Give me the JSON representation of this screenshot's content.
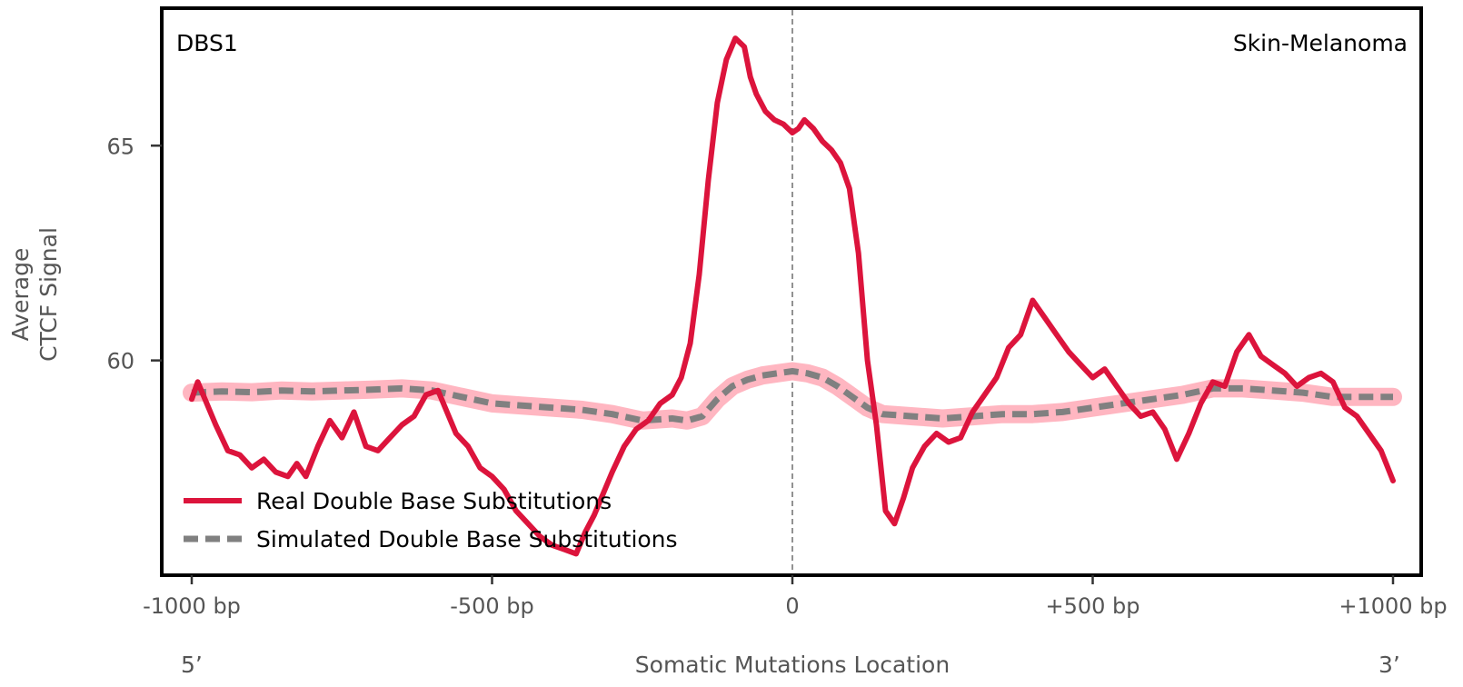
{
  "chart_data": {
    "type": "line",
    "signature_label": "DBS1",
    "cancer_type_label": "Skin-Melanoma",
    "ylabel_lines": [
      "Average",
      "CTCF Signal"
    ],
    "xlabel": "Somatic Mutations Location",
    "end_labels": {
      "left": "5’",
      "right": "3’"
    },
    "xlim": [
      -1000,
      1000
    ],
    "ylim": [
      55,
      68.2
    ],
    "x_ticks": [
      {
        "value": -1000,
        "label": "-1000 bp"
      },
      {
        "value": -500,
        "label": "-500 bp"
      },
      {
        "value": 0,
        "label": "0"
      },
      {
        "value": 500,
        "label": "+500 bp"
      },
      {
        "value": 1000,
        "label": "+1000 bp"
      }
    ],
    "y_ticks": [
      {
        "value": 60,
        "label": "60"
      },
      {
        "value": 65,
        "label": "65"
      }
    ],
    "center_line_x": 0,
    "series": [
      {
        "name": "Real Double Base Substitutions",
        "color": "#dc143c",
        "style": "solid",
        "x": [
          -1000,
          -990,
          -975,
          -960,
          -940,
          -920,
          -900,
          -880,
          -860,
          -840,
          -825,
          -810,
          -790,
          -770,
          -750,
          -730,
          -710,
          -690,
          -670,
          -650,
          -630,
          -610,
          -590,
          -575,
          -560,
          -540,
          -520,
          -500,
          -480,
          -460,
          -440,
          -420,
          -400,
          -380,
          -360,
          -345,
          -330,
          -315,
          -300,
          -280,
          -260,
          -240,
          -220,
          -200,
          -185,
          -170,
          -155,
          -140,
          -125,
          -110,
          -95,
          -80,
          -70,
          -60,
          -45,
          -30,
          -15,
          0,
          10,
          20,
          35,
          50,
          65,
          80,
          95,
          110,
          125,
          140,
          155,
          170,
          185,
          200,
          220,
          240,
          260,
          280,
          300,
          320,
          340,
          360,
          380,
          400,
          420,
          440,
          460,
          480,
          500,
          520,
          540,
          560,
          580,
          600,
          620,
          640,
          660,
          680,
          700,
          720,
          740,
          760,
          780,
          800,
          820,
          840,
          860,
          880,
          900,
          920,
          940,
          960,
          980,
          1000
        ],
        "values": [
          59.1,
          59.5,
          59.0,
          58.5,
          57.9,
          57.8,
          57.5,
          57.7,
          57.4,
          57.3,
          57.6,
          57.3,
          58.0,
          58.6,
          58.2,
          58.8,
          58.0,
          57.9,
          58.2,
          58.5,
          58.7,
          59.2,
          59.3,
          58.8,
          58.3,
          58.0,
          57.5,
          57.3,
          57.0,
          56.5,
          56.2,
          55.9,
          55.7,
          55.6,
          55.5,
          56.0,
          56.4,
          56.9,
          57.4,
          58.0,
          58.4,
          58.6,
          59.0,
          59.2,
          59.6,
          60.4,
          62.0,
          64.2,
          66.0,
          67.0,
          67.5,
          67.3,
          66.6,
          66.2,
          65.8,
          65.6,
          65.5,
          65.3,
          65.4,
          65.6,
          65.4,
          65.1,
          64.9,
          64.6,
          64.0,
          62.5,
          60.0,
          58.5,
          56.5,
          56.2,
          56.8,
          57.5,
          58.0,
          58.3,
          58.1,
          58.2,
          58.8,
          59.2,
          59.6,
          60.3,
          60.6,
          61.4,
          61.0,
          60.6,
          60.2,
          59.9,
          59.6,
          59.8,
          59.4,
          59.0,
          58.7,
          58.8,
          58.4,
          57.7,
          58.3,
          59.0,
          59.5,
          59.4,
          60.2,
          60.6,
          60.1,
          59.9,
          59.7,
          59.4,
          59.6,
          59.7,
          59.5,
          58.9,
          58.7,
          58.3,
          57.9,
          57.2
        ]
      },
      {
        "name": "Simulated Double Base Substitutions",
        "color": "#808080",
        "band_color": "#ffb6c1",
        "style": "dashed",
        "x": [
          -1000,
          -950,
          -900,
          -850,
          -800,
          -750,
          -700,
          -650,
          -600,
          -550,
          -500,
          -450,
          -400,
          -350,
          -300,
          -250,
          -200,
          -175,
          -150,
          -125,
          -100,
          -75,
          -50,
          -25,
          0,
          25,
          50,
          75,
          100,
          125,
          150,
          200,
          250,
          300,
          350,
          400,
          450,
          500,
          550,
          600,
          650,
          700,
          750,
          800,
          850,
          900,
          950,
          1000
        ],
        "values": [
          59.25,
          59.28,
          59.26,
          59.3,
          59.28,
          59.3,
          59.32,
          59.35,
          59.3,
          59.15,
          59.0,
          58.95,
          58.9,
          58.85,
          58.75,
          58.6,
          58.65,
          58.6,
          58.7,
          59.1,
          59.4,
          59.55,
          59.65,
          59.7,
          59.75,
          59.7,
          59.6,
          59.4,
          59.15,
          58.9,
          58.75,
          58.7,
          58.65,
          58.7,
          58.75,
          58.75,
          58.8,
          58.9,
          59.0,
          59.1,
          59.2,
          59.35,
          59.35,
          59.3,
          59.25,
          59.15,
          59.15,
          59.15
        ]
      }
    ],
    "legend": {
      "position": "lower-left",
      "entries": [
        "Real Double Base Substitutions",
        "Simulated Double Base Substitutions"
      ]
    }
  }
}
